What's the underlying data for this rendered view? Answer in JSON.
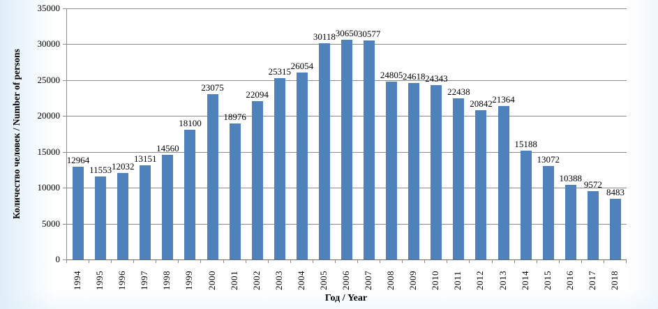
{
  "chart_data": {
    "type": "bar",
    "title": "",
    "xlabel": "Год / Year",
    "ylabel": "Количество человек / Number of persons",
    "categories": [
      "1994",
      "1995",
      "1996",
      "1997",
      "1998",
      "1999",
      "2000",
      "2001",
      "2002",
      "2003",
      "2004",
      "2005",
      "2006",
      "2007",
      "2008",
      "2009",
      "2010",
      "2011",
      "2012",
      "2013",
      "2014",
      "2015",
      "2016",
      "2017",
      "2018"
    ],
    "values": [
      12964,
      11553,
      12032,
      13151,
      14560,
      18100,
      23075,
      18976,
      22094,
      25315,
      26054,
      30118,
      30650,
      30577,
      24805,
      24618,
      24343,
      22438,
      20842,
      21364,
      15188,
      13072,
      10388,
      9572,
      8483
    ],
    "ylim": [
      0,
      35000
    ],
    "yticks": [
      0,
      5000,
      10000,
      15000,
      20000,
      25000,
      30000,
      35000
    ],
    "grid": "horizontal-on",
    "legend_position": "none",
    "data_labels_visible": true,
    "bar_color": "#4f81bd",
    "grid_color": "#8c8c8c",
    "axis_color": "#6e6e6e",
    "text_color": "#000000",
    "background_color": "#ffffff",
    "edge_tint_color": "#deedf8"
  }
}
